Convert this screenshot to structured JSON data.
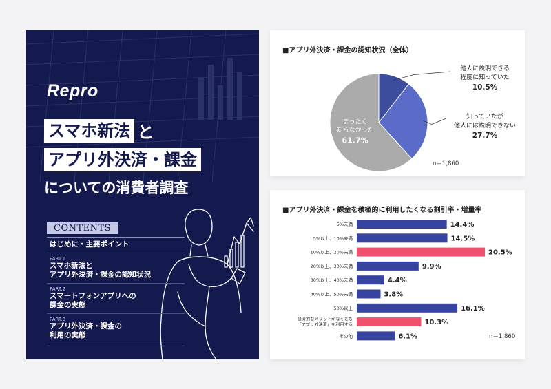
{
  "cover": {
    "logo": "Repro",
    "title_line1": "スマホ新法",
    "title_line1_suffix": "と",
    "title_line2": "アプリ外決済・課金",
    "title_line3": "についての消費者調査",
    "contents_label": "CONTENTS",
    "items": [
      {
        "part": "",
        "lines": [
          "はじめに・主要ポイント"
        ]
      },
      {
        "part": "PART.1",
        "lines": [
          "スマホ新法と",
          "アプリ外決済・課金の認知状況"
        ]
      },
      {
        "part": "PART.2",
        "lines": [
          "スマートフォンアプリへの",
          "課金の実態"
        ]
      },
      {
        "part": "PART.3",
        "lines": [
          "アプリ外決済・課金の",
          "利用の実態"
        ]
      }
    ],
    "colors": {
      "bg": "#141a4e",
      "accent_blue": "#3b4fb0",
      "accent_pink": "#f0506e"
    }
  },
  "chart_data": [
    {
      "type": "pie",
      "title": "■アプリ外決済・課金の認知状況（全体）",
      "note": "n＝1,860",
      "slices": [
        {
          "label": [
            "他人に説明できる",
            "程度に知っていた"
          ],
          "value": 10.5,
          "display": "10.5%",
          "color": "#3d4d9e"
        },
        {
          "label": [
            "知っていたが",
            "他人には説明できない"
          ],
          "value": 27.7,
          "display": "27.7%",
          "color": "#5a6cc7"
        },
        {
          "label": [
            "まったく",
            "知らなかった"
          ],
          "value": 61.7,
          "display": "61.7%",
          "color": "#aaaaaa"
        }
      ]
    },
    {
      "type": "bar",
      "orientation": "horizontal",
      "title": "■アプリ外決済・課金を積極的に利用したくなる割引率・増量率",
      "note": "n＝1,860",
      "categories": [
        [
          "5%未満"
        ],
        [
          "5%以上、10%未満"
        ],
        [
          "10%以上、20%未満"
        ],
        [
          "20%以上、30%未満"
        ],
        [
          "30%以上、40%未満"
        ],
        [
          "40%以上、50%未満"
        ],
        [
          "50%以上"
        ],
        [
          "経済的なメリットがなくとも",
          "「アプリ外決済」を利用する"
        ],
        [
          "その他"
        ]
      ],
      "values": [
        14.4,
        14.5,
        20.5,
        9.9,
        4.4,
        3.8,
        16.1,
        10.3,
        6.1
      ],
      "value_labels": [
        "14.4%",
        "14.5%",
        "20.5%",
        "9.9%",
        "4.4%",
        "3.8%",
        "16.1%",
        "10.3%",
        "6.1%"
      ],
      "highlight": [
        false,
        false,
        true,
        false,
        false,
        false,
        false,
        true,
        false
      ],
      "colors": {
        "normal": "#3644a0",
        "highlight": "#f0506e"
      }
    }
  ]
}
